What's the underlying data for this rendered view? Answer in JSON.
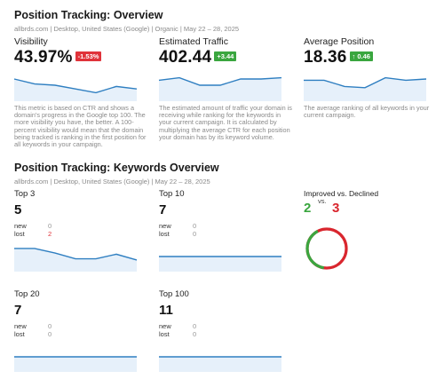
{
  "overview": {
    "title": "Position Tracking: Overview",
    "meta": "allbrds.com | Desktop, United States (Google) | Organic | May 22 – 28, 2025",
    "cards": [
      {
        "label": "Visibility",
        "value": "43.97%",
        "delta": "-1.53%",
        "delta_color": "#e0333a",
        "trend": [
          0.75,
          0.55,
          0.5,
          0.35,
          0.2,
          0.45,
          0.35
        ],
        "description": "This metric is based on CTR and shows a domain's progress in the Google top 100. The more visibility you have, the better. A 100-percent visibility would mean that the domain being tracked is ranking in the first position for all keywords in your campaign."
      },
      {
        "label": "Estimated Traffic",
        "value": "402.44",
        "delta": "+3.44",
        "delta_color": "#3aa63f",
        "trend": [
          0.7,
          0.8,
          0.5,
          0.5,
          0.75,
          0.75,
          0.8
        ],
        "description": "The estimated amount of traffic your domain is receiving while ranking for the keywords in your current campaign. It is calculated by multiplying the average CTR for each position your domain has by its keyword volume."
      },
      {
        "label": "Average Position",
        "value": "18.36",
        "delta": "↑ 0.46",
        "delta_color": "#3aa63f",
        "trend": [
          0.7,
          0.7,
          0.45,
          0.4,
          0.8,
          0.7,
          0.75
        ],
        "description": "The average ranking of all keywords in your current campaign."
      }
    ]
  },
  "keywords": {
    "title": "Position Tracking: Keywords Overview",
    "meta": "allbrds.com | Desktop, United States (Google) | May 22 – 28, 2025",
    "new_label": "new",
    "lost_label": "lost",
    "groups": [
      {
        "label": "Top 3",
        "value": "5",
        "new": "0",
        "lost": "2",
        "trend": [
          0.85,
          0.85,
          0.65,
          0.4,
          0.4,
          0.6,
          0.35
        ]
      },
      {
        "label": "Top 10",
        "value": "7",
        "new": "0",
        "lost": "0",
        "trend": [
          0.5,
          0.5,
          0.5,
          0.5,
          0.5,
          0.5,
          0.5
        ]
      },
      {
        "label": "Top 20",
        "value": "7",
        "new": "0",
        "lost": "0",
        "trend": [
          0.5,
          0.5,
          0.5,
          0.5,
          0.5,
          0.5,
          0.5
        ]
      },
      {
        "label": "Top 100",
        "value": "11",
        "new": "0",
        "lost": "0",
        "trend": [
          0.5,
          0.5,
          0.5,
          0.5,
          0.5,
          0.5,
          0.5
        ]
      }
    ],
    "comparison": {
      "title": "Improved vs. Declined",
      "improved": "2",
      "vs": "vs.",
      "declined": "3",
      "improved_color": "#3aa63f",
      "declined_color": "#d9262e"
    }
  }
}
